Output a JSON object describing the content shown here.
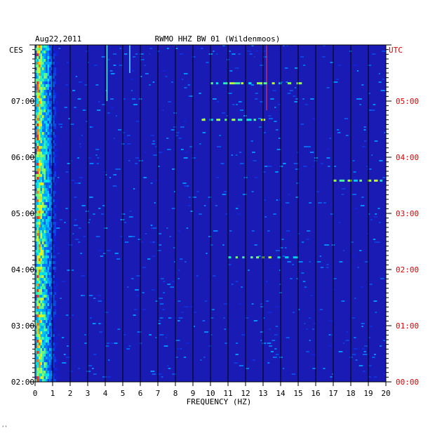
{
  "chart_data": {
    "type": "heatmap",
    "date": "Aug22,2011",
    "title": "RWMO HHZ BW 01 (Wildenmoos)",
    "xlabel": "FREQUENCY (HZ)",
    "xlim": [
      0,
      20
    ],
    "x_ticks": [
      "0",
      "1",
      "2",
      "3",
      "4",
      "5",
      "6",
      "7",
      "8",
      "9",
      "10",
      "11",
      "12",
      "13",
      "14",
      "15",
      "16",
      "17",
      "18",
      "19",
      "20"
    ],
    "left_timezone": "CES",
    "right_timezone": "UTC",
    "left_time_ticks": [
      "07:00",
      "06:00",
      "05:00",
      "04:00",
      "03:00",
      "02:00"
    ],
    "right_time_ticks": [
      "05:00",
      "04:00",
      "03:00",
      "02:00",
      "01:00",
      "00:00"
    ],
    "time_range_ces": [
      "02:00",
      "08:00"
    ],
    "grid": true,
    "colors": {
      "background": "#1a1ab4",
      "low": "#0a0a9e",
      "mid": "#00c8ff",
      "high": "#ffff00",
      "peak": "#ff2000",
      "grid": "#000000",
      "utc_labels": "#e00000"
    },
    "features": [
      {
        "type": "high-energy band",
        "frequency_range_hz": [
          0,
          1
        ],
        "time_range_ces": [
          "02:00",
          "08:00"
        ]
      },
      {
        "type": "spectral line",
        "frequency_hz": 13.2,
        "time_range_ces": [
          "06:50",
          "08:00"
        ]
      },
      {
        "type": "spectral line",
        "frequency_hz": 4.1,
        "time_range_ces": [
          "07:00",
          "08:00"
        ]
      },
      {
        "type": "spectral line",
        "frequency_hz": 5.4,
        "time_range_ces": [
          "07:30",
          "08:00"
        ]
      },
      {
        "type": "horizontal streak",
        "frequency_range_hz": [
          11,
          15
        ],
        "time_ces": "04:13"
      },
      {
        "type": "horizontal streak",
        "frequency_range_hz": [
          9.5,
          13
        ],
        "time_ces": "06:40"
      },
      {
        "type": "horizontal streak",
        "frequency_range_hz": [
          10,
          15
        ],
        "time_ces": "07:19"
      },
      {
        "type": "horizontal streak",
        "frequency_range_hz": [
          17,
          19.7
        ],
        "time_ces": "05:35"
      }
    ]
  },
  "corner_mark": "ʼʼ"
}
